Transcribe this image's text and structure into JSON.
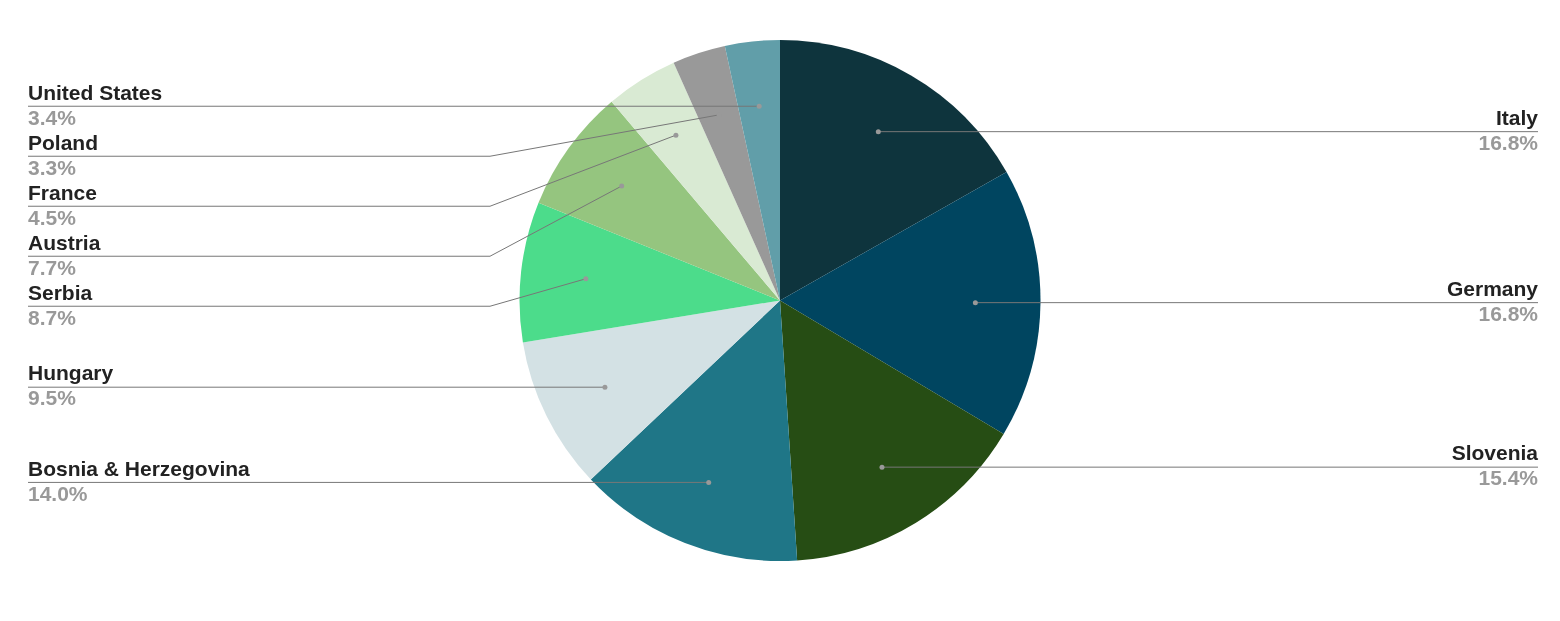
{
  "chart_data": {
    "type": "pie",
    "categories": [
      "Italy",
      "Germany",
      "Slovenia",
      "Bosnia & Herzegovina",
      "Hungary",
      "Serbia",
      "Austria",
      "France",
      "Poland",
      "United States"
    ],
    "values": [
      16.8,
      16.8,
      15.4,
      14.0,
      9.5,
      8.7,
      7.7,
      4.5,
      3.3,
      3.4
    ],
    "value_labels": [
      "16.8%",
      "16.8%",
      "15.4%",
      "14.0%",
      "9.5%",
      "8.7%",
      "7.7%",
      "4.5%",
      "3.3%",
      "3.4%"
    ],
    "colors": [
      "#0e343d",
      "#004560",
      "#264d14",
      "#1f7687",
      "#d3e1e4",
      "#4cdc8b",
      "#95c57f",
      "#d9ead3",
      "#999999",
      "#619ea9"
    ],
    "legend": false
  }
}
